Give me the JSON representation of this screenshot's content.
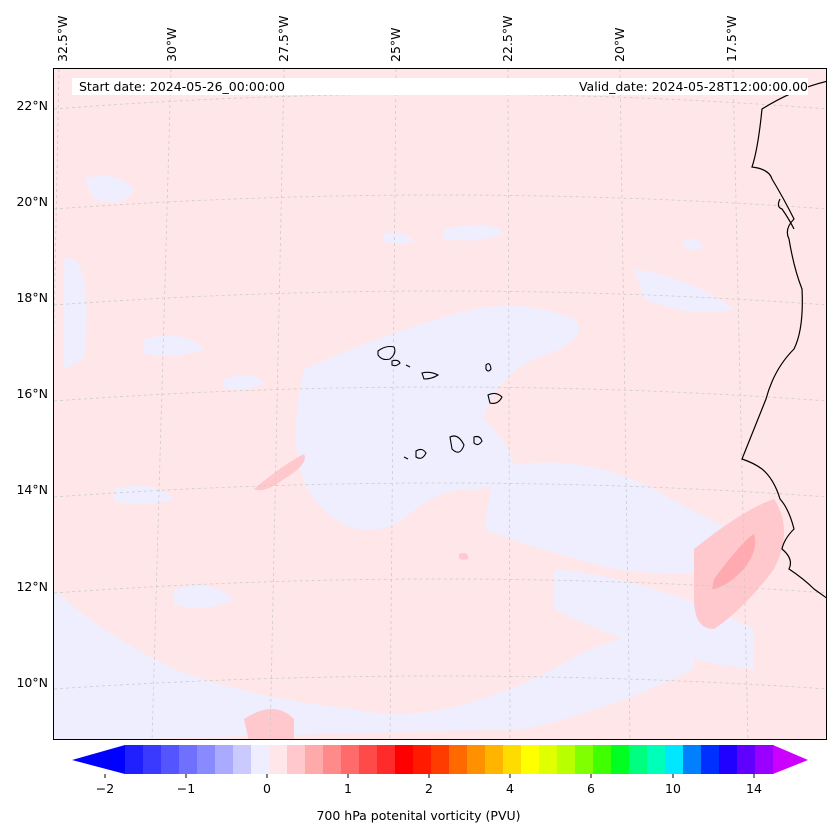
{
  "map": {
    "start_date": "Start date: 2024-05-26_00:00:00",
    "valid_date": "Valid_date: 2024-05-28T12:00:00.00",
    "lon_labels": [
      "32.5°W",
      "30°W",
      "27.5°W",
      "25°W",
      "22.5°W",
      "20°W",
      "17.5°W"
    ],
    "lat_labels": [
      "22°N",
      "20°N",
      "18°N",
      "16°N",
      "14°N",
      "12°N",
      "10°N"
    ],
    "colors": {
      "background_field": "#ffe6e8",
      "negative_patch": "#eeeeff",
      "positive_patch": "#ffc8cc",
      "positive_strong": "#ffaab0",
      "coastline": "#000000",
      "gridline": "#cccccc"
    }
  },
  "colorbar": {
    "label": "700 hPa potenital vorticity (PVU)",
    "tick_labels": [
      "−2",
      "−1",
      "0",
      "1",
      "2",
      "4",
      "6",
      "10",
      "14"
    ],
    "extend_low_color": "#0000ff",
    "extend_high_color": "#cc00ff",
    "colors": [
      "#2020ff",
      "#3a3aff",
      "#5555ff",
      "#7070ff",
      "#8a8aff",
      "#aaaaff",
      "#cacaff",
      "#eeeeff",
      "#ffe6e8",
      "#ffc8cc",
      "#ffaaaa",
      "#ff8a8a",
      "#ff6a6a",
      "#ff4a4a",
      "#ff2a2a",
      "#ff0000",
      "#ff1a00",
      "#ff3c00",
      "#ff6a00",
      "#ff9000",
      "#ffb400",
      "#ffdc00",
      "#ffff00",
      "#e0ff00",
      "#b8ff00",
      "#80ff00",
      "#40ff00",
      "#00ff20",
      "#00ff80",
      "#00ffb8",
      "#00e8ff",
      "#0080ff",
      "#0030ff",
      "#2000ff",
      "#6000ff",
      "#9900ff"
    ]
  }
}
